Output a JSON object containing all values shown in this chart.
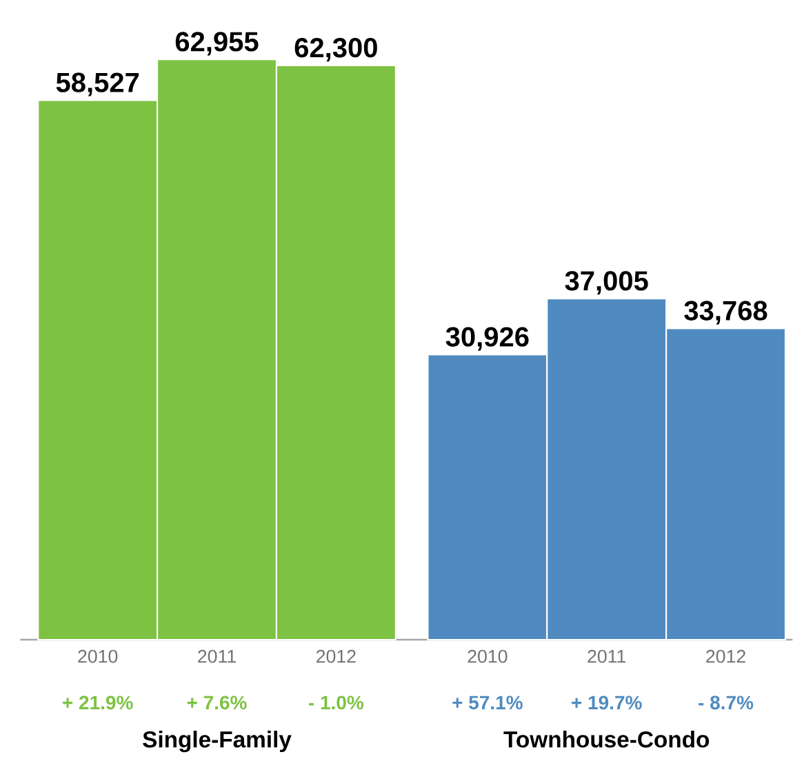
{
  "chart_data": {
    "type": "bar",
    "categories": [
      "2010",
      "2011",
      "2012",
      "2010",
      "2011",
      "2012"
    ],
    "values": [
      58527,
      62955,
      62300,
      30926,
      37005,
      33768
    ],
    "colors": [
      "#7dc242",
      "#7dc242",
      "#7dc242",
      "#4f8bc0",
      "#4f8bc0",
      "#4f8bc0"
    ],
    "value_labels": [
      "58,527",
      "62,955",
      "62,300",
      "30,926",
      "37,005",
      "33,768"
    ],
    "annotations": [
      "+ 21.9%",
      "+ 7.6%",
      "- 1.0%",
      "+ 57.1%",
      "+ 19.7%",
      "- 8.7%",
      "Single-Family",
      "Townhouse-Condo"
    ]
  }
}
